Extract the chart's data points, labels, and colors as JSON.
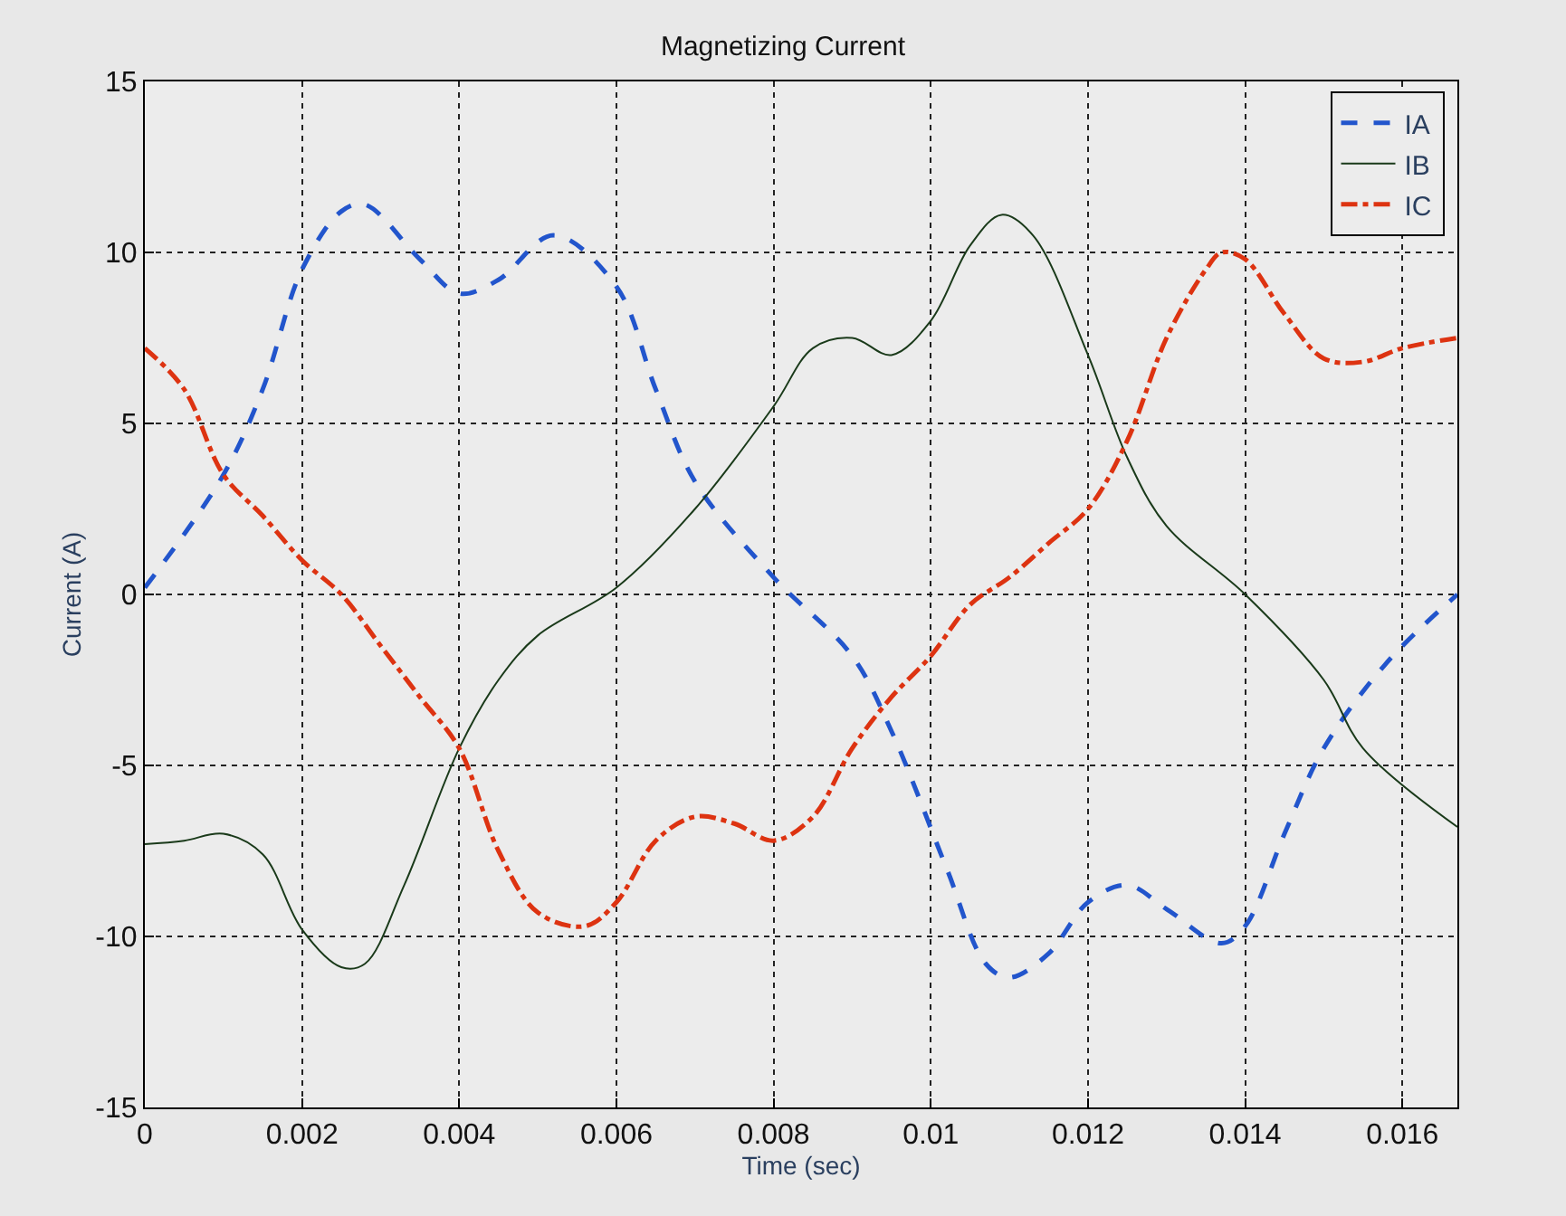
{
  "chart_data": {
    "type": "line",
    "title": "Magnetizing Current",
    "xlabel": "Time (sec)",
    "ylabel": "Current (A)",
    "xlim": [
      0,
      0.0167
    ],
    "xticks": [
      0,
      0.002,
      0.004,
      0.006,
      0.008,
      0.01,
      0.012,
      0.014,
      0.016
    ],
    "ylim": [
      -15,
      15
    ],
    "yticks": [
      -15,
      -10,
      -5,
      0,
      5,
      10,
      15
    ],
    "grid": true,
    "legend": "top right",
    "marker": "none",
    "series": [
      {
        "name": "IA",
        "color": "#2255cc",
        "line_style": "dashed",
        "x": [
          0,
          0.001,
          0.0015,
          0.002,
          0.0025,
          0.0028,
          0.0035,
          0.004,
          0.0045,
          0.0052,
          0.006,
          0.0065,
          0.007,
          0.008,
          0.009,
          0.0095,
          0.0102,
          0.0107,
          0.011,
          0.0115,
          0.012,
          0.0125,
          0.013,
          0.0137,
          0.014,
          0.0145,
          0.015,
          0.0158,
          0.0167
        ],
        "values": [
          0.2,
          3.5,
          6,
          9.5,
          11.2,
          11.4,
          9.8,
          8.8,
          9.2,
          10.5,
          9,
          6,
          3.3,
          0.5,
          -1.8,
          -4,
          -8,
          -10.8,
          -11.2,
          -10.5,
          -9,
          -8.5,
          -9.2,
          -10.2,
          -9.7,
          -7,
          -4.5,
          -2,
          0
        ]
      },
      {
        "name": "IB",
        "color": "#1a3a1a",
        "line_style": "solid",
        "x": [
          0,
          0.0005,
          0.001,
          0.0015,
          0.002,
          0.0025,
          0.0028,
          0.0033,
          0.004,
          0.0045,
          0.005,
          0.006,
          0.007,
          0.008,
          0.0085,
          0.009,
          0.0095,
          0.01,
          0.0105,
          0.0109,
          0.0113,
          0.012,
          0.0125,
          0.013,
          0.014,
          0.015,
          0.0155,
          0.0167
        ],
        "values": [
          -7.3,
          -7.2,
          -7,
          -7.6,
          -9.8,
          -10.9,
          -10.8,
          -8.5,
          -4.5,
          -2.5,
          -1.2,
          0.2,
          2.5,
          5.5,
          7.2,
          7.5,
          7,
          8,
          10.2,
          11.1,
          10.5,
          7,
          4,
          2,
          0,
          -2.5,
          -4.5,
          -6.8
        ]
      },
      {
        "name": "IC",
        "color": "#dd3311",
        "line_style": "dashdot",
        "x": [
          0,
          0.0005,
          0.001,
          0.0015,
          0.002,
          0.0025,
          0.003,
          0.0035,
          0.004,
          0.0045,
          0.005,
          0.0056,
          0.006,
          0.0065,
          0.007,
          0.0075,
          0.008,
          0.0085,
          0.009,
          0.0095,
          0.01,
          0.0105,
          0.011,
          0.0115,
          0.012,
          0.0125,
          0.013,
          0.0135,
          0.0137,
          0.014,
          0.0145,
          0.015,
          0.0155,
          0.016,
          0.0167
        ],
        "values": [
          7.2,
          6,
          3.5,
          2.3,
          1,
          0,
          -1.5,
          -3,
          -4.5,
          -7.5,
          -9.3,
          -9.7,
          -9,
          -7.2,
          -6.5,
          -6.7,
          -7.2,
          -6.5,
          -4.5,
          -3,
          -1.8,
          -0.3,
          0.5,
          1.5,
          2.5,
          4.5,
          7.5,
          9.5,
          10,
          9.8,
          8.2,
          6.9,
          6.8,
          7.2,
          7.5
        ]
      }
    ]
  }
}
